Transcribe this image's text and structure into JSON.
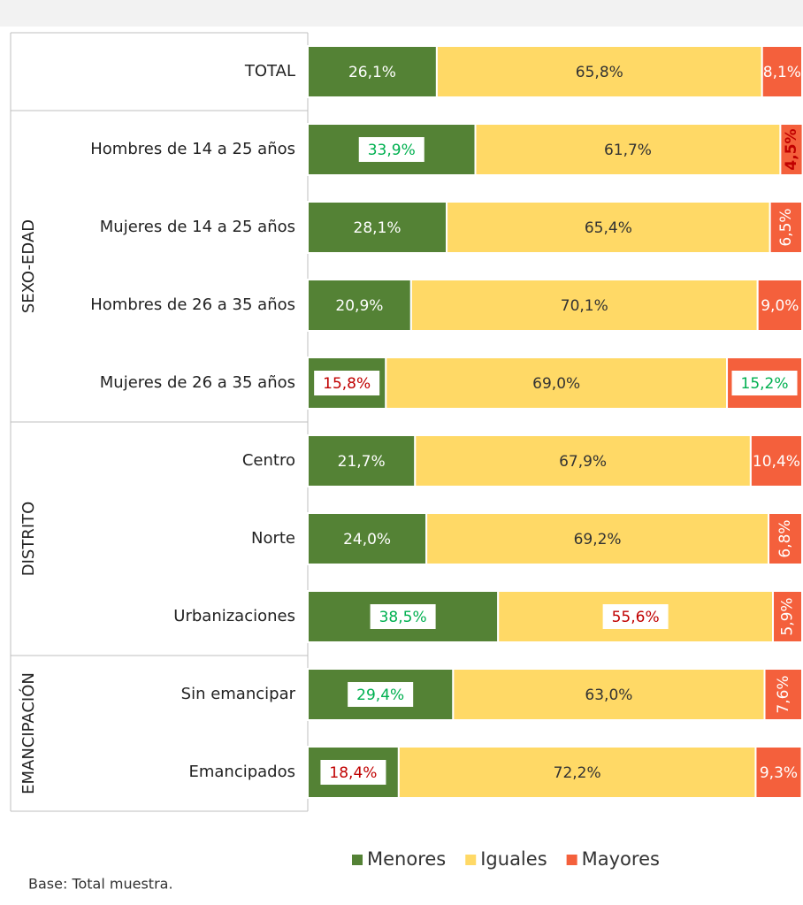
{
  "chart_data": {
    "type": "stacked_barh",
    "row_groups": [
      {
        "categories": [
          "TOTAL"
        ]
      },
      {
        "label": "SEXO-EDAD",
        "categories": [
          "Hombres de 14 a 25 años",
          "Mujeres de 14 a 25 años",
          "Hombres de 26 a 35 años",
          "Mujeres de 26 a 35 años"
        ]
      },
      {
        "label": "DISTRITO",
        "categories": [
          "Centro",
          "Norte",
          "Urbanizaciones"
        ]
      },
      {
        "label": "EMANCIPACIÓN",
        "categories": [
          "Sin emancipar",
          "Emancipados"
        ]
      }
    ],
    "xlim": [
      0,
      100
    ],
    "series": [
      {
        "name": "Menores",
        "color": "#548235",
        "values": [
          26.1,
          33.9,
          28.1,
          20.9,
          15.8,
          21.7,
          24.0,
          38.5,
          29.4,
          18.4
        ],
        "value_labels": [
          "26,1%",
          "33,9%",
          "28,1%",
          "20,9%",
          "15,8%",
          "21,7%",
          "24,0%",
          "38,5%",
          "29,4%",
          "18,4%"
        ],
        "label_highlight": [
          null,
          "#00b050",
          null,
          null,
          "#c00000",
          null,
          null,
          "#00b050",
          "#00b050",
          "#c00000"
        ]
      },
      {
        "name": "Iguales",
        "color": "#ffd966",
        "values": [
          65.8,
          61.7,
          65.4,
          70.1,
          69.0,
          67.9,
          69.2,
          55.6,
          63.0,
          72.2
        ],
        "value_labels": [
          "65,8%",
          "61,7%",
          "65,4%",
          "70,1%",
          "69,0%",
          "67,9%",
          "69,2%",
          "55,6%",
          "63,0%",
          "72,2%"
        ],
        "label_highlight": [
          null,
          null,
          null,
          null,
          null,
          null,
          null,
          "#c00000",
          null,
          null
        ]
      },
      {
        "name": "Mayores",
        "color": "#f4603c",
        "values": [
          8.1,
          4.5,
          6.5,
          9.0,
          15.2,
          10.4,
          6.8,
          5.9,
          7.6,
          9.3
        ],
        "value_labels": [
          "8,1%",
          "4,5%",
          "6,5%",
          "9,0%",
          "15,2%",
          "10,4%",
          "6,8%",
          "5,9%",
          "7,6%",
          "9,3%"
        ],
        "label_highlight": [
          null,
          "#c00000",
          null,
          null,
          "#00b050",
          null,
          null,
          null,
          null,
          null
        ]
      }
    ],
    "legend_position": "bottom",
    "note": "Base: Total muestra."
  }
}
